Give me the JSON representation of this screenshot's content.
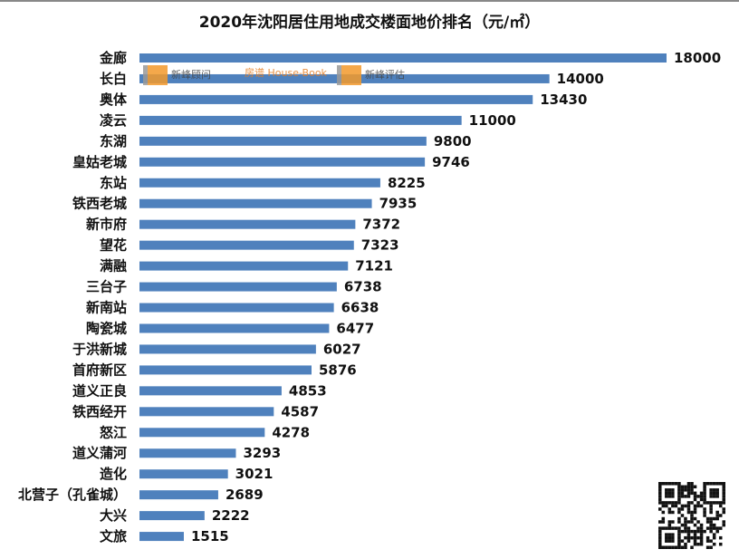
{
  "chart_data": {
    "type": "bar",
    "orientation": "horizontal",
    "title": "2020年沈阳居住用地成交楼面地价排名（元/㎡）",
    "categories": [
      "金廊",
      "长白",
      "奥体",
      "凌云",
      "东湖",
      "皇姑老城",
      "东站",
      "铁西老城",
      "新市府",
      "望花",
      "满融",
      "三台子",
      "新南站",
      "陶瓷城",
      "于洪新城",
      "首府新区",
      "道义正良",
      "铁西经开",
      "怒江",
      "道义蒲河",
      "造化",
      "北营子（孔雀城）",
      "大兴",
      "文旅"
    ],
    "values": [
      18000,
      14000,
      13430,
      11000,
      9800,
      9746,
      8225,
      7935,
      7372,
      7323,
      7121,
      6738,
      6638,
      6477,
      6027,
      5876,
      4853,
      4587,
      4278,
      3293,
      3021,
      2689,
      2222,
      1515
    ],
    "xlim": [
      0,
      18000
    ],
    "grid": false,
    "data_labels": true,
    "bar_color": "#4f81bd"
  },
  "watermarks": [
    "新峰顾问",
    "房谱 House-Book",
    "新峰评估"
  ]
}
